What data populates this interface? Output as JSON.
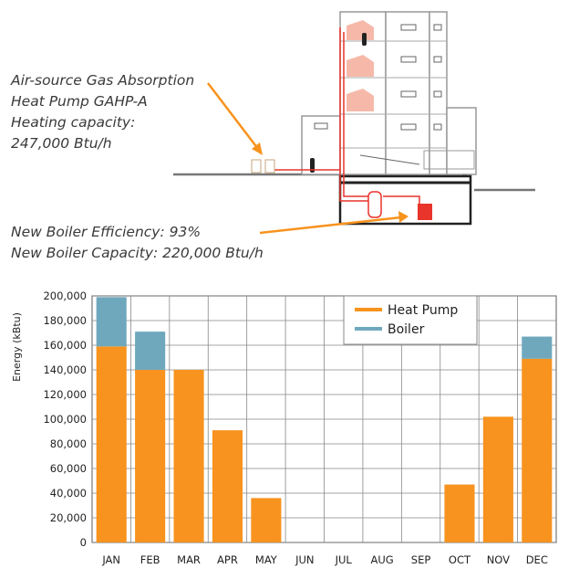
{
  "annotations": {
    "gahp": [
      "Air-source Gas Absorption",
      "Heat Pump GAHP-A",
      "Heating capacity:",
      "247,000 Btu/h"
    ],
    "boiler": [
      "New Boiler Efficiency: 93%",
      "New Boiler Capacity: 220,000 Btu/h"
    ]
  },
  "colors": {
    "heat_pump": "#f7931e",
    "boiler": "#6fa8bd",
    "arrow": "#f7931e",
    "building_pipe": "#e8342b"
  },
  "chart_data": {
    "type": "bar",
    "stacked": true,
    "categories": [
      "JAN",
      "FEB",
      "MAR",
      "APR",
      "MAY",
      "JUN",
      "JUL",
      "AUG",
      "SEP",
      "OCT",
      "NOV",
      "DEC"
    ],
    "series": [
      {
        "name": "Heat Pump",
        "values": [
          159000,
          140000,
          140000,
          91000,
          36000,
          0,
          0,
          0,
          0,
          47000,
          102000,
          149000
        ]
      },
      {
        "name": "Boiler",
        "values": [
          40000,
          31000,
          0,
          0,
          0,
          0,
          0,
          0,
          0,
          0,
          0,
          18000
        ]
      }
    ],
    "xlabel": "",
    "ylabel": "Energy (kBtu)",
    "ylim": [
      0,
      200000
    ],
    "yticks": [
      "0",
      "20,000",
      "40,000",
      "60,000",
      "80,000",
      "100,000",
      "120,000",
      "140,000",
      "160,000",
      "180,000",
      "200,000"
    ],
    "grid": true,
    "legend": "top-right"
  }
}
